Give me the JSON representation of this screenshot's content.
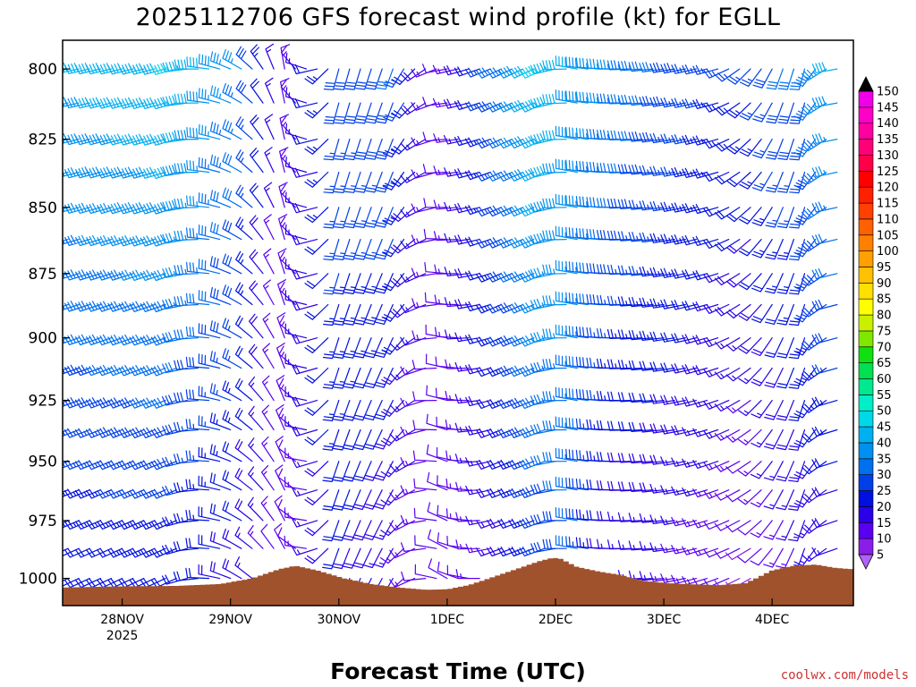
{
  "chart_data": {
    "type": "wind-profile",
    "title": "2025112706 GFS forecast wind profile (kt) for EGLL",
    "xlabel": "Forecast Time (UTC)",
    "credit": "coolwx.com/models",
    "x_ticks": [
      {
        "day": 0,
        "label": "28NOV",
        "sublabel": "2025"
      },
      {
        "day": 1,
        "label": "29NOV",
        "sublabel": ""
      },
      {
        "day": 2,
        "label": "30NOV",
        "sublabel": ""
      },
      {
        "day": 3,
        "label": "1DEC",
        "sublabel": ""
      },
      {
        "day": 4,
        "label": "2DEC",
        "sublabel": ""
      },
      {
        "day": 5,
        "label": "3DEC",
        "sublabel": ""
      },
      {
        "day": 6,
        "label": "4DEC",
        "sublabel": ""
      }
    ],
    "xlim_days": [
      -0.55,
      6.75
    ],
    "y_ticks": [
      800,
      825,
      850,
      875,
      900,
      925,
      950,
      975,
      1000
    ],
    "ylim_hpa": [
      790,
      1012
    ],
    "y_scale": "log-pressure",
    "levels_hpa": [
      800,
      812,
      825,
      837,
      850,
      862,
      875,
      887,
      900,
      912,
      925,
      937,
      950,
      962,
      975,
      987,
      1000
    ],
    "barb_times_days": [
      -0.5,
      -0.4,
      -0.3,
      -0.2,
      -0.1,
      0.0,
      0.1,
      0.2,
      0.3,
      0.4,
      0.5,
      0.6,
      0.7,
      0.8,
      0.9,
      1.0,
      1.1,
      1.2,
      1.3,
      1.4,
      1.5,
      1.6,
      1.7,
      1.8,
      1.9,
      2.0,
      2.1,
      2.2,
      2.3,
      2.4,
      2.5,
      2.6,
      2.7,
      2.8,
      2.9,
      3.0,
      3.1,
      3.2,
      3.3,
      3.4,
      3.5,
      3.6,
      3.7,
      3.8,
      3.9,
      4.0,
      4.1,
      4.2,
      4.3,
      4.4,
      4.5,
      4.6,
      4.7,
      4.8,
      4.9,
      5.0,
      5.1,
      5.2,
      5.3,
      5.4,
      5.5,
      5.6,
      5.7,
      5.8,
      5.9,
      6.0,
      6.1,
      6.2,
      6.3,
      6.4,
      6.5,
      6.6
    ],
    "wind_key_times_days": [
      -0.5,
      0.5,
      1.1,
      1.5,
      2.0,
      2.5,
      3.0,
      3.5,
      3.9,
      4.2,
      4.6,
      5.0,
      5.5,
      5.8,
      6.1,
      6.3,
      6.6
    ],
    "wind_dir_upper_deg": [
      258,
      255,
      300,
      350,
      195,
      200,
      260,
      245,
      245,
      280,
      270,
      262,
      255,
      225,
      200,
      195,
      260
    ],
    "wind_dir_lower_deg": [
      245,
      245,
      300,
      330,
      200,
      210,
      300,
      250,
      250,
      280,
      270,
      265,
      250,
      240,
      210,
      200,
      250
    ],
    "wind_speed_upper_kt": [
      40,
      45,
      35,
      10,
      28,
      30,
      10,
      30,
      45,
      40,
      35,
      30,
      25,
      25,
      30,
      30,
      40
    ],
    "wind_speed_lower_kt": [
      20,
      22,
      18,
      10,
      20,
      15,
      10,
      15,
      25,
      30,
      15,
      15,
      12,
      8,
      12,
      15,
      15
    ],
    "surface_pressure_hpa": [
      [
        -0.55,
        1004.0
      ],
      [
        0.0,
        1003.5
      ],
      [
        0.5,
        1003.3
      ],
      [
        0.9,
        1002.5
      ],
      [
        1.2,
        1000.0
      ],
      [
        1.45,
        996.0
      ],
      [
        1.6,
        994.5
      ],
      [
        1.8,
        996.5
      ],
      [
        2.05,
        1000.0
      ],
      [
        2.3,
        1002.5
      ],
      [
        2.55,
        1004.0
      ],
      [
        2.8,
        1005.0
      ],
      [
        3.0,
        1004.8
      ],
      [
        3.2,
        1003.0
      ],
      [
        3.45,
        999.0
      ],
      [
        3.7,
        995.0
      ],
      [
        3.85,
        992.5
      ],
      [
        3.98,
        991.0
      ],
      [
        4.05,
        991.5
      ],
      [
        4.2,
        995.0
      ],
      [
        4.4,
        997.0
      ],
      [
        4.6,
        998.5
      ],
      [
        4.8,
        1001.0
      ],
      [
        5.0,
        1002.0
      ],
      [
        5.2,
        1002.5
      ],
      [
        5.5,
        1003.0
      ],
      [
        5.75,
        1002.2
      ],
      [
        5.85,
        1000.0
      ],
      [
        6.0,
        996.5
      ],
      [
        6.2,
        994.5
      ],
      [
        6.4,
        994.0
      ],
      [
        6.6,
        995.5
      ],
      [
        6.75,
        996.0
      ]
    ],
    "colorbar": {
      "ticks": [
        5,
        10,
        15,
        20,
        25,
        30,
        35,
        40,
        45,
        50,
        55,
        60,
        65,
        70,
        75,
        80,
        85,
        90,
        95,
        100,
        105,
        110,
        115,
        120,
        125,
        130,
        135,
        140,
        145,
        150
      ],
      "colors": [
        "#8a1ee8",
        "#5a00f0",
        "#2a00e8",
        "#0010e0",
        "#0040e8",
        "#0070ef",
        "#0090f0",
        "#00b0f0",
        "#00d8e8",
        "#00eec8",
        "#00e890",
        "#00e050",
        "#10e010",
        "#80e800",
        "#c8f000",
        "#ffff00",
        "#ffe000",
        "#ffc000",
        "#ffa000",
        "#ff8000",
        "#ff6000",
        "#ff4000",
        "#ff2000",
        "#ff0000",
        "#ff0048",
        "#ff0078",
        "#ff00a0",
        "#ff00c8",
        "#f000e8"
      ],
      "under_color": "#b060ff",
      "over_color": "#000000"
    },
    "terrain_color": "#a0522d"
  }
}
